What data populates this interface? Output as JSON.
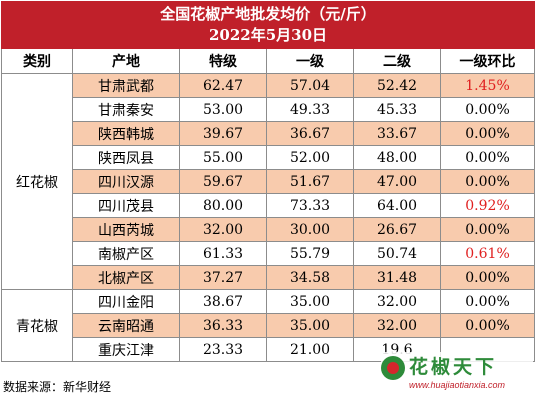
{
  "title": "全国花椒产地批发均价（元/斤）",
  "date": "2022年5月30日",
  "headers": [
    "类别",
    "产地",
    "特级",
    "一级",
    "二级",
    "一级环比"
  ],
  "groups": [
    {
      "category": "红花椒",
      "rows": [
        {
          "origin": "甘肃武都",
          "special": "62.47",
          "first": "57.04",
          "second": "52.42",
          "change": "1.45%"
        },
        {
          "origin": "甘肃秦安",
          "special": "53.00",
          "first": "49.33",
          "second": "45.33",
          "change": "0.00%"
        },
        {
          "origin": "陕西韩城",
          "special": "39.67",
          "first": "36.67",
          "second": "33.67",
          "change": "0.00%"
        },
        {
          "origin": "陕西凤县",
          "special": "55.00",
          "first": "52.00",
          "second": "48.00",
          "change": "0.00%"
        },
        {
          "origin": "四川汉源",
          "special": "59.67",
          "first": "51.67",
          "second": "47.00",
          "change": "0.00%"
        },
        {
          "origin": "四川茂县",
          "special": "80.00",
          "first": "73.33",
          "second": "64.00",
          "change": "0.92%"
        },
        {
          "origin": "山西芮城",
          "special": "32.00",
          "first": "30.00",
          "second": "26.67",
          "change": "0.00%"
        },
        {
          "origin": "南椒产区",
          "special": "61.33",
          "first": "55.79",
          "second": "50.74",
          "change": "0.61%"
        },
        {
          "origin": "北椒产区",
          "special": "37.27",
          "first": "34.58",
          "second": "31.48",
          "change": "0.00%"
        }
      ]
    },
    {
      "category": "青花椒",
      "rows": [
        {
          "origin": "四川金阳",
          "special": "38.67",
          "first": "35.00",
          "second": "32.00",
          "change": "0.00%"
        },
        {
          "origin": "云南昭通",
          "special": "36.33",
          "first": "35.00",
          "second": "32.00",
          "change": "0.00%"
        },
        {
          "origin": "重庆江津",
          "special": "23.33",
          "first": "21.00",
          "second": "19.6",
          "change": ""
        }
      ]
    }
  ],
  "positive_change_color": "#e02020",
  "source": "数据来源：新华财经",
  "watermark": {
    "brand": "花椒天下",
    "url": "www.huajiaotianxia.com"
  }
}
